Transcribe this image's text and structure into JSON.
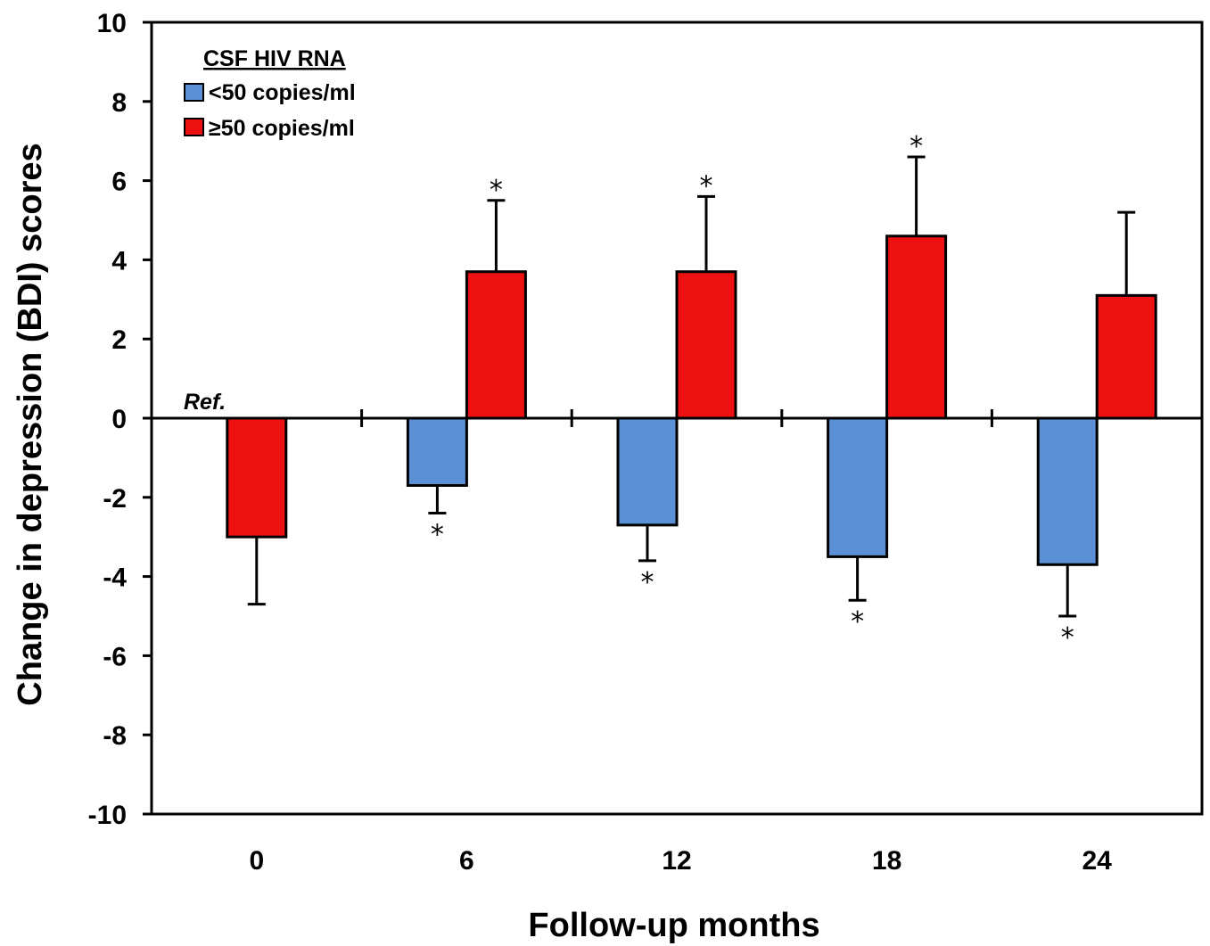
{
  "chart_data": {
    "type": "bar",
    "title": "",
    "xlabel": "Follow-up months",
    "ylabel": "Change in depression (BDI) scores",
    "categories": [
      "0",
      "6",
      "12",
      "18",
      "24"
    ],
    "ylim": [
      -10,
      10
    ],
    "yticks": [
      -10,
      -8,
      -6,
      -4,
      -2,
      0,
      2,
      4,
      6,
      8,
      10
    ],
    "grid": false,
    "legend_position": "top-left",
    "legend_title": "CSF HIV RNA",
    "reference_label": "Ref.",
    "significance_marker": "*",
    "series": [
      {
        "name": "<50 copies/ml",
        "color": "#5b8fd6",
        "values": [
          0,
          -1.7,
          -2.7,
          -3.5,
          -3.7
        ],
        "error": [
          null,
          0.7,
          0.9,
          1.1,
          1.3
        ],
        "significant": [
          false,
          true,
          true,
          true,
          true
        ]
      },
      {
        "name": "≥50 copies/ml",
        "color": "#ee1111",
        "values": [
          -3.0,
          3.7,
          3.7,
          4.6,
          3.1
        ],
        "error": [
          1.7,
          1.8,
          1.9,
          2.0,
          2.1
        ],
        "significant": [
          false,
          true,
          true,
          true,
          false
        ]
      }
    ]
  }
}
